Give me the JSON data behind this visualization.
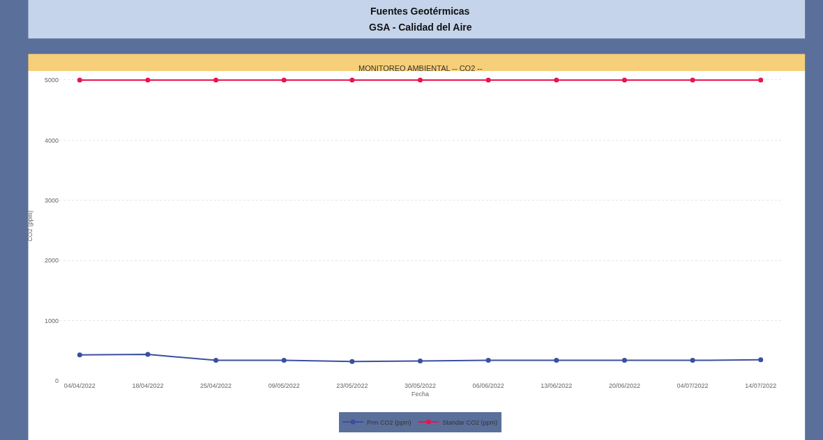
{
  "chart_data": {
    "type": "line",
    "title": "Fuentes Geotérmicas",
    "subtitle": "GSA - Calidad del Aire",
    "annotations": [
      "MONITOREO AMBIENTAL -- CO2 --"
    ],
    "xlabel": "Fecha",
    "ylabel": "CO2 (ppm)",
    "categories": [
      "04/04/2022",
      "18/04/2022",
      "25/04/2022",
      "09/05/2022",
      "23/05/2022",
      "30/05/2022",
      "06/06/2022",
      "13/06/2022",
      "20/06/2022",
      "04/07/2022",
      "14/07/2022"
    ],
    "series": [
      {
        "name": "Prm CO2 (ppm)",
        "color": "#3a4fa0",
        "values": [
          430,
          440,
          340,
          340,
          320,
          330,
          340,
          340,
          340,
          340,
          350
        ]
      },
      {
        "name": "Standar CO2 (ppm)",
        "color": "#e8144f",
        "values": [
          5000,
          5000,
          5000,
          5000,
          5000,
          5000,
          5000,
          5000,
          5000,
          5000,
          5000
        ]
      }
    ],
    "ylim": [
      0,
      5150
    ],
    "yticks": [
      0,
      1000,
      2000,
      3000,
      4000,
      5000
    ],
    "grid": "y",
    "legend": "bottom",
    "marker": "circle",
    "line_style": "solid"
  }
}
